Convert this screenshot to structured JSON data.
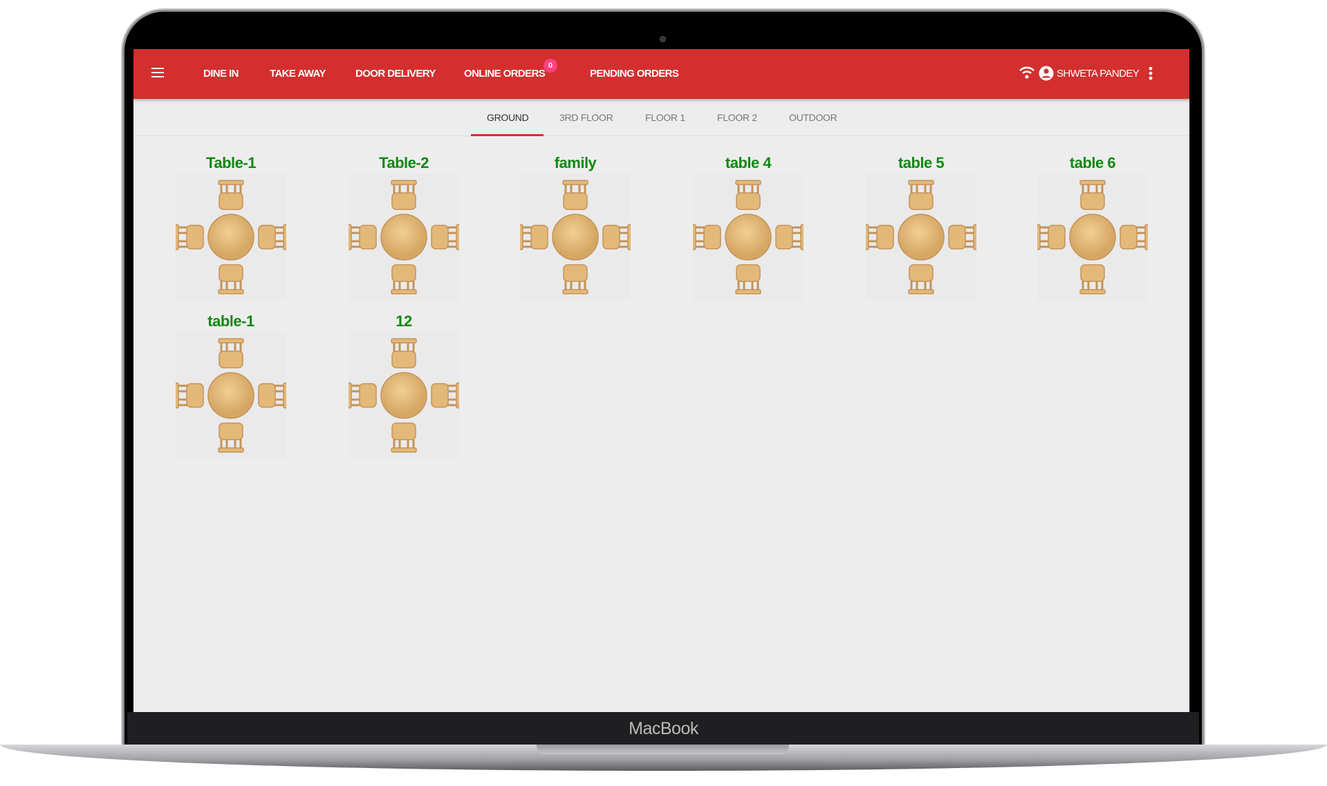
{
  "header": {
    "nav": [
      "DINE IN",
      "TAKE AWAY",
      "DOOR DELIVERY",
      "ONLINE ORDERS",
      "PENDING ORDERS"
    ],
    "online_orders_badge": "0",
    "user_name": "SHWETA PANDEY",
    "accent_color": "#d32f2f",
    "badge_color": "#ff4081"
  },
  "tabs": [
    "GROUND",
    "3RD FLOOR",
    "FLOOR 1",
    "FLOOR 2",
    "OUTDOOR"
  ],
  "active_tab": "GROUND",
  "tables": [
    {
      "name": "Table-1"
    },
    {
      "name": "Table-2"
    },
    {
      "name": "family"
    },
    {
      "name": "table 4"
    },
    {
      "name": "table 5"
    },
    {
      "name": "table 6"
    },
    {
      "name": "table-1"
    },
    {
      "name": "12"
    }
  ],
  "device": {
    "brand": "MacBook"
  }
}
